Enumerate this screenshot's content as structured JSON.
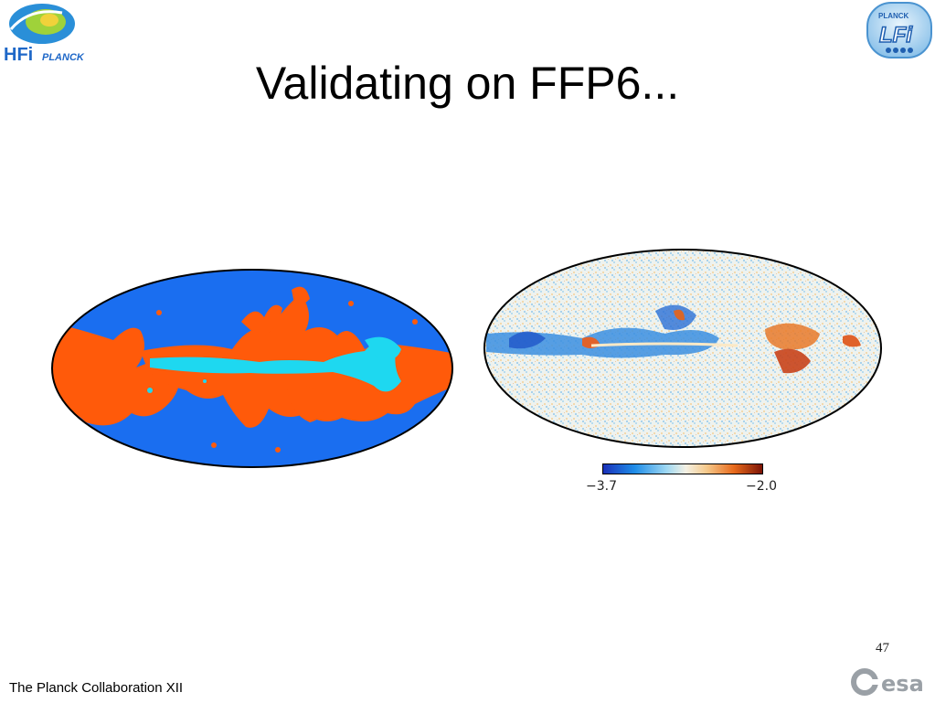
{
  "slide": {
    "title": "Validating on FFP6...",
    "page_number": "47",
    "footer": "The Planck Collaboration XII"
  },
  "logos": {
    "hfi": "HFI PLANCK",
    "lfi": "PLANCK LFI",
    "esa": "esa"
  },
  "left_map": {
    "colors": {
      "background": "#1a6ef0",
      "region_a": "#ff5a0a",
      "region_b": "#1ed8f0"
    }
  },
  "right_map": {
    "colorbar": {
      "min_label": "−3.7",
      "max_label": "−2.0"
    },
    "colormap": [
      "#1a2fb8",
      "#1f8de8",
      "#9fd8f2",
      "#f4f1e4",
      "#f5c98b",
      "#e86a1c",
      "#7a1205"
    ]
  }
}
